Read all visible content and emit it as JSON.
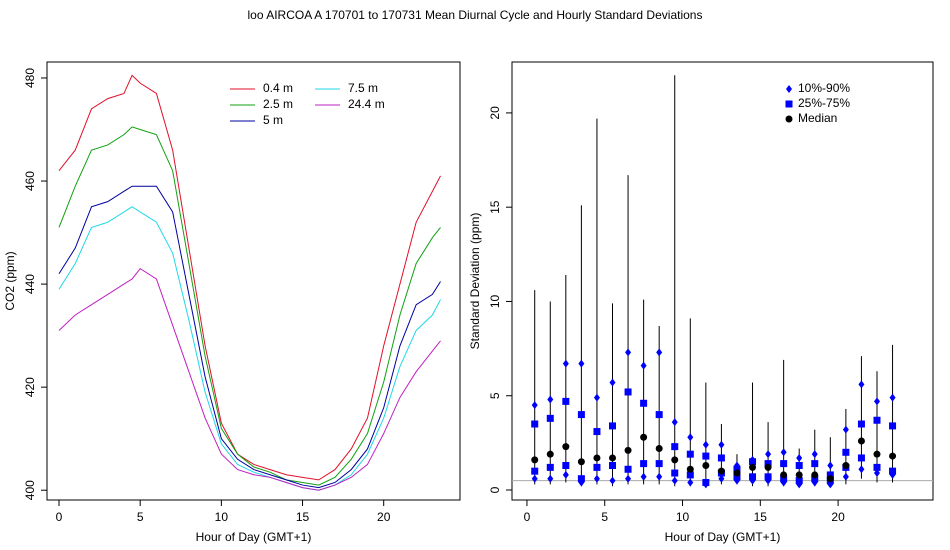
{
  "title": "loo   AIRCOA A   170701 to 170731   Mean Diurnal Cycle and Hourly Standard Deviations",
  "chart_data": [
    {
      "type": "line",
      "xlabel": "Hour of Day (GMT+1)",
      "ylabel": "CO2 (ppm)",
      "x": [
        0,
        1,
        2,
        3,
        4,
        4.5,
        5,
        6,
        7,
        8,
        9,
        10,
        11,
        12,
        13,
        14,
        15,
        16,
        17,
        18,
        19,
        20,
        21,
        22,
        23,
        23.5
      ],
      "series": [
        {
          "name": "0.4 m",
          "color": "#e0102a",
          "values": [
            462,
            466,
            474,
            476,
            477,
            480.5,
            479,
            477,
            466,
            447,
            428,
            413,
            407,
            405,
            404,
            403,
            402.5,
            402,
            404,
            408,
            414,
            428,
            440,
            452,
            458,
            461
          ]
        },
        {
          "name": "2.5 m",
          "color": "#10a010",
          "values": [
            451,
            459,
            466,
            467,
            469,
            470.5,
            470,
            469,
            462,
            444,
            426,
            412,
            407,
            404.5,
            403.5,
            402,
            401.5,
            401,
            402.5,
            406,
            411,
            421,
            434,
            444,
            449,
            451
          ]
        },
        {
          "name": "5 m",
          "color": "#0000a0",
          "values": [
            442,
            447,
            455,
            456,
            458,
            459,
            459,
            459,
            454,
            438,
            422,
            410,
            406,
            404,
            403,
            402,
            401,
            400.5,
            401.5,
            404,
            408,
            416,
            428,
            436,
            438,
            440.5
          ]
        },
        {
          "name": "7.5 m",
          "color": "#20d8e8",
          "values": [
            439,
            444,
            451,
            452,
            454,
            455,
            454,
            452,
            446,
            433,
            419,
            409,
            405,
            403.5,
            402.5,
            401.5,
            400.5,
            400,
            401,
            403,
            407,
            414,
            424,
            431,
            434,
            437
          ]
        },
        {
          "name": "24.4 m",
          "color": "#c020c0",
          "values": [
            431,
            434,
            436,
            438,
            440,
            441,
            443,
            441,
            432,
            423,
            414,
            407,
            404,
            403,
            402.5,
            401.5,
            400.5,
            400,
            401,
            402.5,
            405,
            411,
            418,
            423,
            427,
            429
          ]
        }
      ],
      "xlim": [
        -0.74,
        24.7
      ],
      "ylim": [
        398.1,
        483.1
      ],
      "xticks": [
        0,
        5,
        10,
        15,
        20
      ],
      "yticks": [
        400,
        420,
        440,
        460,
        480
      ]
    },
    {
      "type": "box",
      "xlabel": "Hour of Day (GMT+1)",
      "ylabel": "Standard Deviation (ppm)",
      "x": [
        0.5,
        1.5,
        2.5,
        3.5,
        4.5,
        5.5,
        6.5,
        7.5,
        8.5,
        9.5,
        10.5,
        11.5,
        12.5,
        13.5,
        14.5,
        15.5,
        16.5,
        17.5,
        18.5,
        19.5,
        20.5,
        21.5,
        22.5,
        23.5
      ],
      "min": [
        0.3,
        0.3,
        0.4,
        0.2,
        0.3,
        0.2,
        0.3,
        0.3,
        0.3,
        0.2,
        0.2,
        0.2,
        0.3,
        0.3,
        0.2,
        0.2,
        0.2,
        0.2,
        0.2,
        0.2,
        0.3,
        0.6,
        0.4,
        0.4
      ],
      "max": [
        10.6,
        10.0,
        11.4,
        15.1,
        19.7,
        9.9,
        16.7,
        10.1,
        8.7,
        22.0,
        9.1,
        5.7,
        3.5,
        1.9,
        5.7,
        3.6,
        6.9,
        2.2,
        3.2,
        2.8,
        4.3,
        7.1,
        6.3,
        7.7
      ],
      "series": [
        {
          "name": "10%-90%",
          "color": "#0000ff",
          "marker": "diamond",
          "lower": [
            0.6,
            0.6,
            0.8,
            0.4,
            0.6,
            0.5,
            0.6,
            0.7,
            0.7,
            0.5,
            0.4,
            0.3,
            0.6,
            0.5,
            0.5,
            0.5,
            0.4,
            0.3,
            0.4,
            0.3,
            0.7,
            1.1,
            0.9,
            0.8
          ],
          "upper": [
            4.5,
            4.8,
            6.7,
            6.7,
            4.9,
            5.7,
            7.3,
            6.6,
            7.3,
            3.6,
            2.8,
            2.4,
            2.4,
            1.3,
            1.6,
            1.9,
            2.0,
            1.7,
            1.9,
            1.3,
            3.2,
            5.6,
            4.7,
            4.9
          ]
        },
        {
          "name": "25%-75%",
          "color": "#0000ff",
          "marker": "square",
          "lower": [
            1.0,
            1.2,
            1.3,
            0.6,
            1.2,
            1.3,
            1.1,
            1.4,
            1.4,
            0.9,
            0.8,
            0.4,
            0.9,
            0.7,
            0.7,
            0.7,
            0.6,
            0.5,
            0.6,
            0.5,
            1.2,
            1.7,
            1.2,
            1.0
          ],
          "upper": [
            3.5,
            3.8,
            4.7,
            4.0,
            3.1,
            3.4,
            5.2,
            4.6,
            4.0,
            2.3,
            1.9,
            1.8,
            1.7,
            1.1,
            1.5,
            1.4,
            1.4,
            1.3,
            1.4,
            0.8,
            2.0,
            3.5,
            3.7,
            3.4
          ]
        },
        {
          "name": "Median",
          "color": "#000000",
          "marker": "circle",
          "values": [
            1.6,
            1.9,
            2.3,
            1.5,
            1.7,
            1.7,
            2.1,
            2.8,
            2.2,
            1.6,
            1.1,
            1.3,
            1.0,
            0.9,
            1.2,
            1.2,
            0.8,
            0.8,
            0.8,
            0.6,
            1.3,
            2.6,
            1.9,
            1.8
          ]
        }
      ],
      "hline": 0.5,
      "xlim": [
        -0.96,
        26.1
      ],
      "ylim": [
        -0.53,
        22.7
      ],
      "xticks": [
        0,
        5,
        10,
        15,
        20
      ],
      "yticks": [
        0,
        5,
        10,
        15,
        20
      ]
    }
  ]
}
